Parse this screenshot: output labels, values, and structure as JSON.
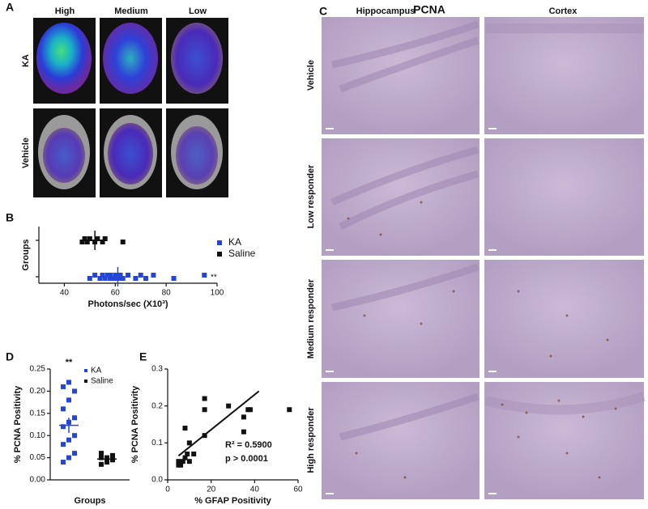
{
  "panel_labels": [
    "A",
    "B",
    "C",
    "D",
    "E"
  ],
  "panel_a": {
    "columns": [
      "High",
      "Medium",
      "Low"
    ],
    "rows": [
      "KA",
      "Vehicle"
    ]
  },
  "panel_c": {
    "title": "PCNA",
    "columns": [
      "Hippocampus",
      "Cortex"
    ],
    "rows": [
      "Vehicle",
      "Low responder",
      "Medium responder",
      "High responder"
    ]
  },
  "chart_data": [
    {
      "type": "strip_h",
      "ylabel": "Groups",
      "xlabel": "Photons/sec (X10³)",
      "xlim": [
        30,
        100
      ],
      "xticks": [
        40,
        60,
        80,
        100
      ],
      "annotation": "**",
      "legend": "right",
      "series": [
        {
          "name": "KA",
          "color": "#2446d8",
          "values": [
            50,
            52,
            54,
            55,
            56,
            57,
            58,
            58,
            59,
            60,
            60,
            61,
            62,
            62,
            63,
            65,
            68,
            70,
            72,
            75,
            83,
            95
          ],
          "mean": 61,
          "sem": 2
        },
        {
          "name": "Saline",
          "color": "#111111",
          "values": [
            47,
            48,
            49,
            50,
            52,
            53,
            55,
            56,
            63
          ],
          "mean": 52,
          "sem": 2.5
        }
      ]
    },
    {
      "type": "strip_v",
      "ylabel": "% PCNA Positivity",
      "xlabel": "Groups",
      "ylim": [
        0,
        0.25
      ],
      "yticks": [
        {
          "value": 0,
          "label": "0.00"
        },
        {
          "value": 0.05,
          "label": "0.05"
        },
        {
          "value": 0.1,
          "label": "0.10"
        },
        {
          "value": 0.15,
          "label": "0.15"
        },
        {
          "value": 0.2,
          "label": "0.20"
        },
        {
          "value": 0.25,
          "label": "0.25"
        }
      ],
      "annotation": "**",
      "legend": "top",
      "series": [
        {
          "name": "KA",
          "color": "#2446d8",
          "values": [
            0.04,
            0.05,
            0.06,
            0.08,
            0.09,
            0.1,
            0.12,
            0.13,
            0.14,
            0.16,
            0.18,
            0.2,
            0.21,
            0.22
          ],
          "mean": 0.123,
          "sem": 0.017
        },
        {
          "name": "Saline",
          "color": "#111111",
          "values": [
            0.035,
            0.04,
            0.045,
            0.05,
            0.05,
            0.055,
            0.06
          ],
          "mean": 0.047,
          "sem": 0.004
        }
      ]
    },
    {
      "type": "scatter",
      "ylabel": "% PCNA Positivity",
      "xlabel": "% GFAP Positivity",
      "xlim": [
        0,
        60
      ],
      "xticks": [
        0,
        20,
        40,
        60
      ],
      "ylim": [
        0,
        0.3
      ],
      "yticks": [
        {
          "value": 0,
          "label": "0.0"
        },
        0.1,
        0.2,
        0.3
      ],
      "color": "#111111",
      "x": [
        5,
        6,
        7,
        8,
        9,
        10,
        12,
        8,
        10,
        17,
        17,
        17,
        28,
        35,
        35,
        37,
        38,
        56,
        5
      ],
      "y": [
        0.05,
        0.04,
        0.05,
        0.06,
        0.07,
        0.05,
        0.07,
        0.14,
        0.1,
        0.12,
        0.19,
        0.22,
        0.2,
        0.13,
        0.17,
        0.19,
        0.19,
        0.19,
        0.04
      ],
      "fit": {
        "x": [
          5,
          42
        ],
        "y": [
          0.065,
          0.24
        ]
      },
      "annotations": [
        "R² = 0.5900",
        "p > 0.0001"
      ]
    }
  ]
}
